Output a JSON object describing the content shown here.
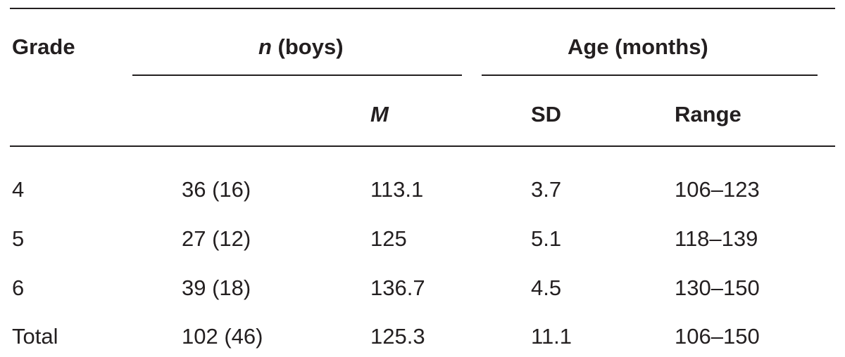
{
  "table": {
    "header_top": {
      "grade": "Grade",
      "n_italic": "n",
      "n_rest": " (boys)",
      "age": "Age (months)"
    },
    "header_sub": {
      "mean": "M",
      "sd": "SD",
      "range": "Range"
    },
    "rows": [
      {
        "grade": "4",
        "n": "36 (16)",
        "m": "113.1",
        "sd": "3.7",
        "range": "106–123"
      },
      {
        "grade": "5",
        "n": "27 (12)",
        "m": "125",
        "sd": "5.1",
        "range": "118–139"
      },
      {
        "grade": "6",
        "n": "39 (18)",
        "m": "136.7",
        "sd": "4.5",
        "range": "130–150"
      },
      {
        "grade": "Total",
        "n": "102 (46)",
        "m": "125.3",
        "sd": "11.1",
        "range": "106–150"
      }
    ]
  }
}
